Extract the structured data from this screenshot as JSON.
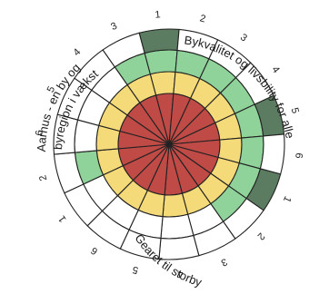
{
  "chart_data": {
    "type": "polar-ring",
    "sector_count": 18,
    "ring_count": 4,
    "ring_colors": [
      "#bf4a46",
      "#f5da79",
      "#8fd39a",
      "#5b7c60"
    ],
    "empty_color": "#ffffff",
    "groups": [
      {
        "name": "Bykvalitet og livsbility for alle",
        "sectors": [
          {
            "label": "1",
            "level": 4
          },
          {
            "label": "2",
            "level": 3
          },
          {
            "label": "3",
            "level": 3
          },
          {
            "label": "4",
            "level": 3
          },
          {
            "label": "5",
            "level": 4
          },
          {
            "label": "6",
            "level": 3
          }
        ]
      },
      {
        "name": "Gearet til storby",
        "sectors": [
          {
            "label": "1",
            "level": 4
          },
          {
            "label": "2",
            "level": 3
          },
          {
            "label": "3",
            "level": 2
          },
          {
            "label": "4",
            "level": 2
          },
          {
            "label": "5",
            "level": 2
          },
          {
            "label": "6",
            "level": 2
          }
        ]
      },
      {
        "name_lines": [
          "Aarhus - en by og",
          "byregion i vækst"
        ],
        "sectors": [
          {
            "label": "1",
            "level": 2
          },
          {
            "label": "2",
            "level": 3
          },
          {
            "label": "6",
            "level": 2
          },
          {
            "label": "5",
            "level": 2
          },
          {
            "label": "4",
            "level": 2
          },
          {
            "label": "3",
            "level": 3
          }
        ]
      }
    ]
  }
}
